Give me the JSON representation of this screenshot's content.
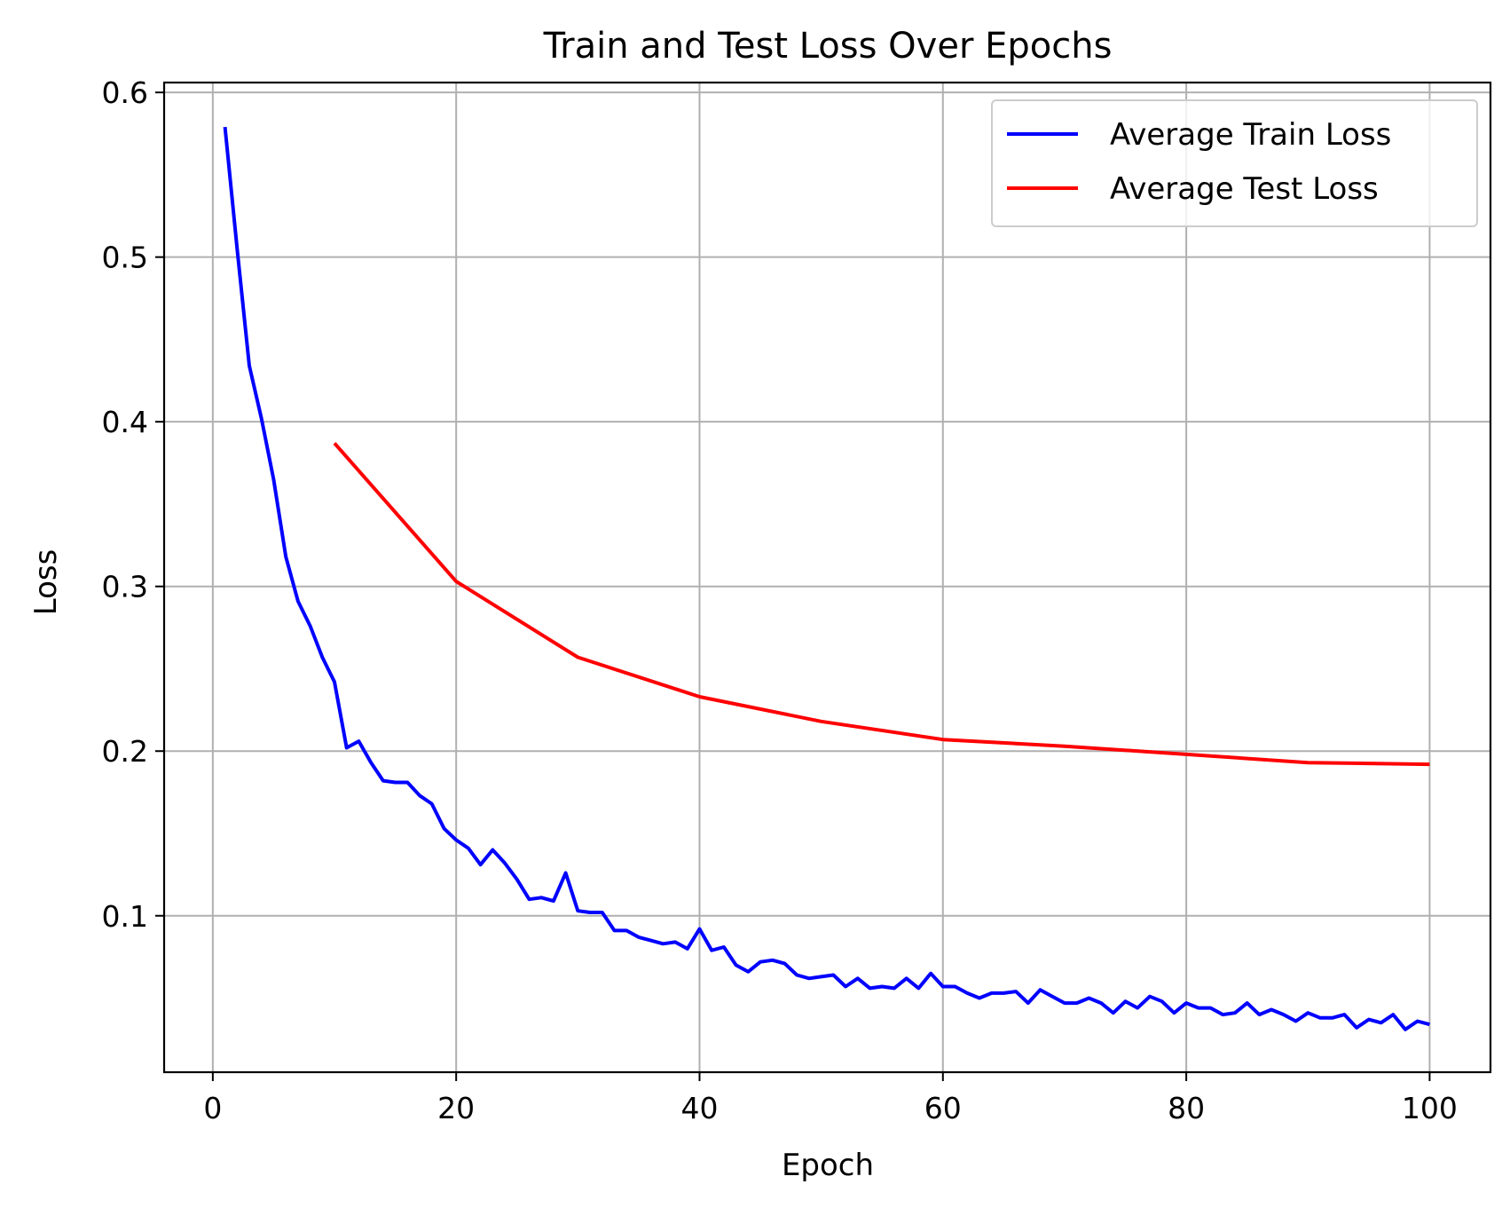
{
  "chart_data": {
    "type": "line",
    "title": "Train and Test Loss Over Epochs",
    "xlabel": "Epoch",
    "ylabel": "Loss",
    "xlim": [
      -4,
      105
    ],
    "ylim": [
      0.005,
      0.606
    ],
    "xticks": [
      0,
      20,
      40,
      60,
      80,
      100
    ],
    "xtick_labels": [
      "0",
      "20",
      "40",
      "60",
      "80",
      "100"
    ],
    "yticks": [
      0.1,
      0.2,
      0.3,
      0.4,
      0.5,
      0.6
    ],
    "ytick_labels": [
      "0.1",
      "0.2",
      "0.3",
      "0.4",
      "0.5",
      "0.6"
    ],
    "grid": true,
    "legend_position": "top-right",
    "series": [
      {
        "name": "Average Train Loss",
        "color": "#0000ff",
        "x": [
          1,
          2,
          3,
          4,
          5,
          6,
          7,
          8,
          9,
          10,
          11,
          12,
          13,
          14,
          15,
          16,
          17,
          18,
          19,
          20,
          21,
          22,
          23,
          24,
          25,
          26,
          27,
          28,
          29,
          30,
          31,
          32,
          33,
          34,
          35,
          36,
          37,
          38,
          39,
          40,
          41,
          42,
          43,
          44,
          45,
          46,
          47,
          48,
          49,
          50,
          51,
          52,
          53,
          54,
          55,
          56,
          57,
          58,
          59,
          60,
          61,
          62,
          63,
          64,
          65,
          66,
          67,
          68,
          69,
          70,
          71,
          72,
          73,
          74,
          75,
          76,
          77,
          78,
          79,
          80,
          81,
          82,
          83,
          84,
          85,
          86,
          87,
          88,
          89,
          90,
          91,
          92,
          93,
          94,
          95,
          96,
          97,
          98,
          99,
          100
        ],
        "y": [
          0.579,
          0.505,
          0.434,
          0.402,
          0.365,
          0.318,
          0.291,
          0.276,
          0.257,
          0.242,
          0.202,
          0.206,
          0.193,
          0.182,
          0.181,
          0.181,
          0.173,
          0.168,
          0.153,
          0.146,
          0.141,
          0.131,
          0.14,
          0.132,
          0.122,
          0.11,
          0.111,
          0.109,
          0.126,
          0.103,
          0.102,
          0.102,
          0.091,
          0.091,
          0.087,
          0.085,
          0.083,
          0.084,
          0.08,
          0.092,
          0.079,
          0.081,
          0.07,
          0.066,
          0.072,
          0.073,
          0.071,
          0.064,
          0.062,
          0.063,
          0.064,
          0.057,
          0.062,
          0.056,
          0.057,
          0.056,
          0.062,
          0.056,
          0.065,
          0.057,
          0.057,
          0.053,
          0.05,
          0.053,
          0.053,
          0.054,
          0.047,
          0.055,
          0.051,
          0.047,
          0.047,
          0.05,
          0.047,
          0.041,
          0.048,
          0.044,
          0.051,
          0.048,
          0.041,
          0.047,
          0.044,
          0.044,
          0.04,
          0.041,
          0.047,
          0.04,
          0.043,
          0.04,
          0.036,
          0.041,
          0.038,
          0.038,
          0.04,
          0.032,
          0.037,
          0.035,
          0.04,
          0.031,
          0.036,
          0.034
        ]
      },
      {
        "name": "Average Test Loss",
        "color": "#ff0000",
        "x": [
          10,
          20,
          30,
          40,
          50,
          60,
          70,
          80,
          90,
          100
        ],
        "y": [
          0.387,
          0.303,
          0.257,
          0.233,
          0.218,
          0.207,
          0.203,
          0.198,
          0.193,
          0.192
        ]
      }
    ]
  }
}
